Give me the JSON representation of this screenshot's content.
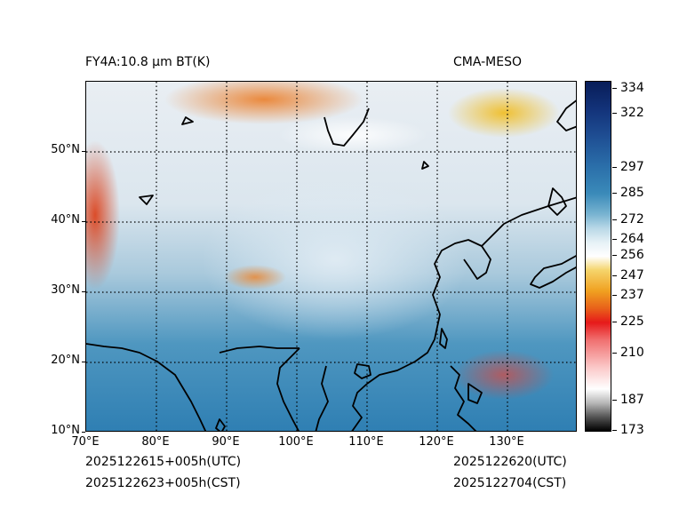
{
  "title_left": "FY4A:10.8 µm BT(K)",
  "title_right": "CMA-MESO",
  "footer": {
    "init_utc": "2025122615+005h(UTC)",
    "init_cst": "2025122623+005h(CST)",
    "valid_utc": "2025122620(UTC)",
    "valid_cst": "2025122704(CST)"
  },
  "lat_labels": [
    "50°N",
    "40°N",
    "30°N",
    "20°N",
    "10°N"
  ],
  "lon_labels": [
    "70°E",
    "80°E",
    "90°E",
    "100°E",
    "110°E",
    "120°E",
    "130°E"
  ],
  "colorbar_labels": [
    "334",
    "322",
    "297",
    "285",
    "272",
    "264",
    "256",
    "247",
    "237",
    "225",
    "210",
    "187",
    "173"
  ],
  "map": {
    "lon_range": [
      70,
      140
    ],
    "lat_range": [
      10,
      60
    ],
    "grid_lons": [
      80,
      90,
      100,
      110,
      120,
      130
    ],
    "grid_lats": [
      20,
      30,
      40,
      50
    ]
  }
}
